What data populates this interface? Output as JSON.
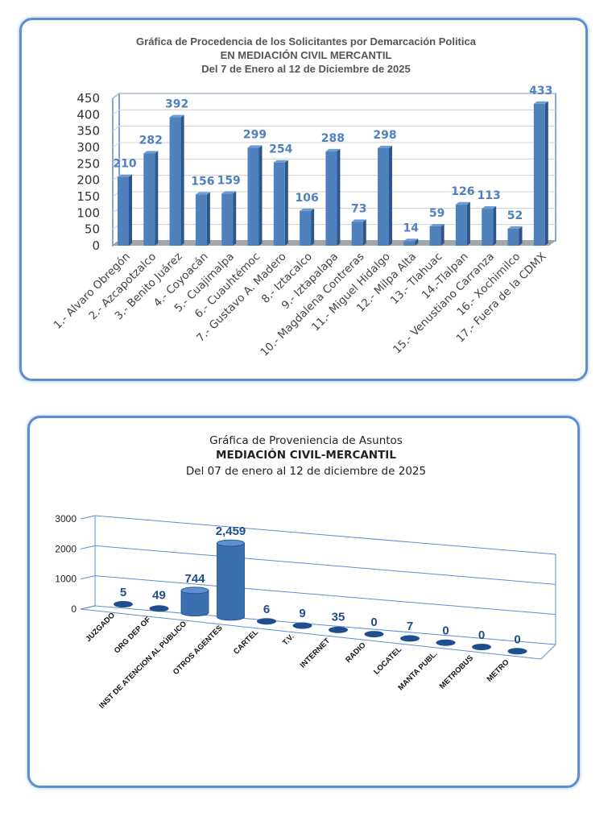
{
  "chart_data": [
    {
      "type": "bar",
      "title": [
        "Gráfica de Procedencia de los Solicitantes por Demarcación Politica",
        "EN MEDIACIÓN  CIVIL MERCANTIL",
        "Del  7 de Enero al  12 de Diciembre  de 2025"
      ],
      "categories": [
        "1.- Alvaro Obregón",
        "2.- Azcapotzalco",
        "3.- Benito Juárez",
        "4.- Coyoacán",
        "5.- Cuajimalpa",
        "6.- Cuauhtémoc",
        "7.- Gustavo A. Madero",
        "8.- Iztacalco",
        "9.- Iztapalapa",
        "10.- Magdalena  Contreras",
        "11.- Miguel Hidalgo",
        "12.- Milpa Alta",
        "13.- Tlahuac",
        "14.-Tlalpan",
        "15.- Venustiano Carranza",
        "16.- Xochimilco",
        "17.- Fuera de la CDMX"
      ],
      "values": [
        210,
        282,
        392,
        156,
        159,
        299,
        254,
        106,
        288,
        73,
        298,
        14,
        59,
        126,
        113,
        52,
        433
      ],
      "yticks": [
        "0",
        "50",
        "100",
        "150",
        "200",
        "250",
        "300",
        "350",
        "400",
        "450"
      ],
      "ylim": [
        0,
        450
      ],
      "grid": true,
      "color": "#4f81bd",
      "label_color": "#4f81bd"
    },
    {
      "type": "bar",
      "title": [
        "Gráfica de Proveniencia de Asuntos",
        "MEDIACIÓN CIVIL-MERCANTIL",
        "Del  07 de enero al  12 de diciembre de  2025"
      ],
      "categories": [
        "JUZGADO",
        "ORG DEP OF",
        "INST DE ATENCION AL PÚBLICO",
        "OTROS AGENTES",
        "CARTEL",
        "T.V.",
        "INTERNET",
        "RADIO",
        "LOCATEL",
        "MANTA PUBL.",
        "METROBUS",
        "METRO"
      ],
      "values": [
        5,
        49,
        744,
        2459,
        6,
        9,
        35,
        0,
        7,
        0,
        0,
        0
      ],
      "value_labels": [
        "5",
        "49",
        "744",
        "2,459",
        "6",
        "9",
        "35",
        "0",
        "7",
        "0",
        "0",
        "0"
      ],
      "yticks": [
        "0",
        "1000",
        "2000",
        "3000"
      ],
      "ylim": [
        0,
        3000
      ],
      "grid": true,
      "color": "#3a6fb0",
      "label_color": "#1f4e8c"
    }
  ]
}
